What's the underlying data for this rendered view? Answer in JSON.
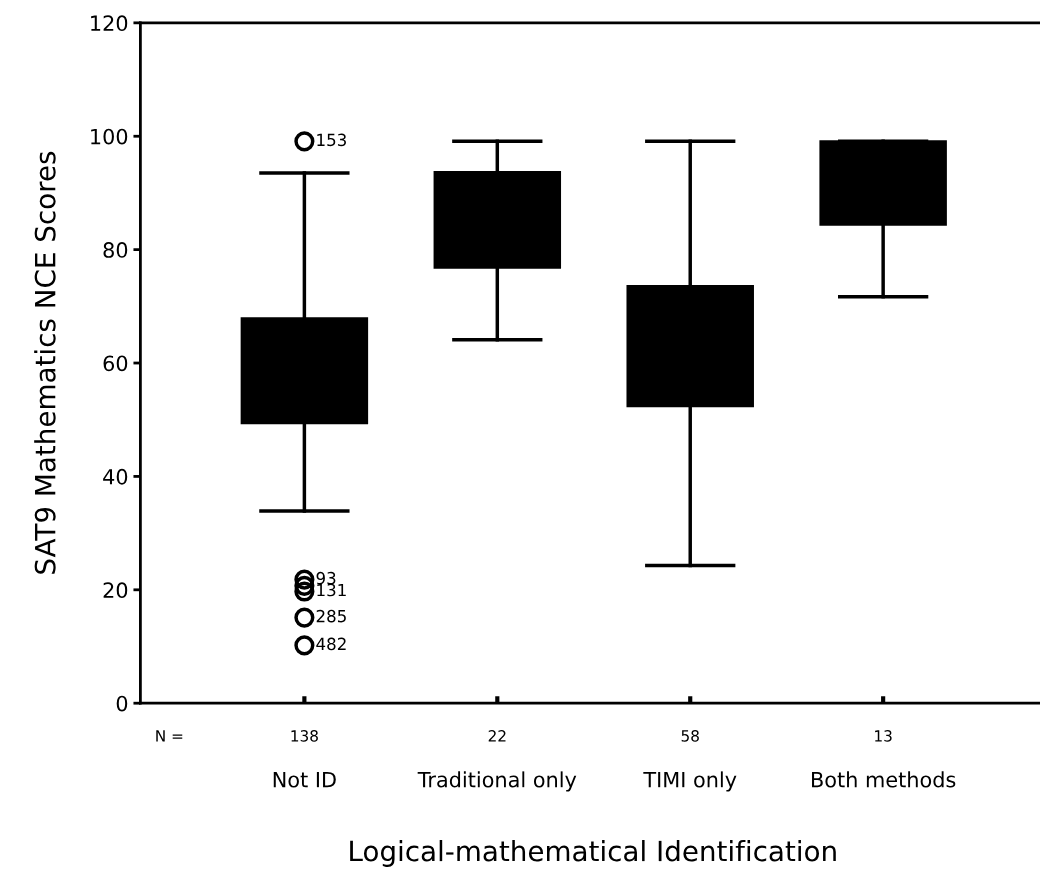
{
  "chart_data": {
    "type": "box",
    "xlabel": "Logical-mathematical Identification",
    "ylabel": "SAT9 Mathematics NCE Scores",
    "categories": [
      "Not ID",
      "Traditional only",
      "TIMI only",
      "Both methods"
    ],
    "color": "#000000",
    "boxes": [
      {
        "low": 33.9,
        "q1": 49.4,
        "median": 58,
        "q3": 67.9,
        "high": 93.5,
        "outliers": [
          99.1,
          21.8,
          19.7,
          15.1,
          10.2,
          20.7
        ]
      },
      {
        "low": 64.1,
        "q1": 76.8,
        "median": 85,
        "q3": 93.7,
        "high": 99.1
      },
      {
        "low": 24.3,
        "q1": 52.4,
        "median": 62,
        "q3": 73.6,
        "high": 99.1
      },
      {
        "low": 71.7,
        "q1": 84.4,
        "median": 92,
        "q3": 99.1,
        "high": 99.1
      }
    ],
    "ylim": [
      0,
      120
    ],
    "yticks": [
      0,
      20,
      40,
      60,
      80,
      100,
      120
    ],
    "grid": false,
    "annotations": [
      "153",
      "93",
      "131",
      "285",
      "482",
      "N =",
      "138",
      "22",
      "58",
      "13"
    ]
  }
}
